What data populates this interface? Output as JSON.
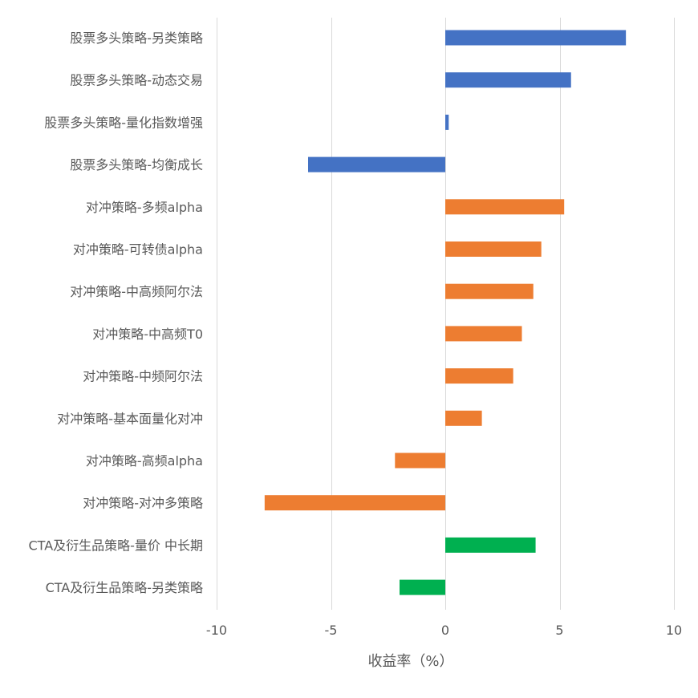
{
  "chart_data": {
    "type": "bar",
    "orientation": "horizontal",
    "title": "",
    "xlabel": "收益率（%）",
    "ylabel": "",
    "xlim": [
      -10,
      10
    ],
    "xticks": [
      -10,
      -5,
      0,
      5,
      10
    ],
    "grid": true,
    "legend": "none",
    "categories": [
      "股票多头策略-另类策略",
      "股票多头策略-动态交易",
      "股票多头策略-量化指数增强",
      "股票多头策略-均衡成长",
      "对冲策略-多频alpha",
      "对冲策略-可转债alpha",
      "对冲策略-中高频阿尔法",
      "对冲策略-中高频T0",
      "对冲策略-中频阿尔法",
      "对冲策略-基本面量化对冲",
      "对冲策略-高频alpha",
      "对冲策略-对冲多策略",
      "CTA及衍生品策略-量价 中长期",
      "CTA及衍生品策略-另类策略"
    ],
    "values": [
      7.9,
      5.5,
      0.15,
      -6.0,
      5.2,
      4.2,
      3.85,
      3.35,
      2.97,
      1.6,
      -2.2,
      -7.9,
      3.95,
      -2.0
    ],
    "bar_colors": [
      "#4472c4",
      "#4472c4",
      "#4472c4",
      "#4472c4",
      "#ed7d31",
      "#ed7d31",
      "#ed7d31",
      "#ed7d31",
      "#ed7d31",
      "#ed7d31",
      "#ed7d31",
      "#ed7d31",
      "#00b050",
      "#00b050"
    ]
  }
}
